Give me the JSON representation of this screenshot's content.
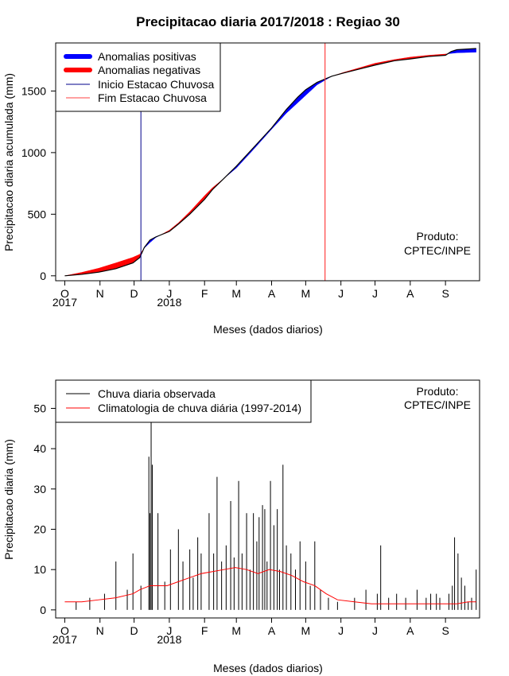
{
  "chart_data": [
    {
      "type": "area",
      "title": "Precipitacao diaria 2017/2018 : Regiao 30",
      "xlabel": "Meses (dados diarios)",
      "ylabel": "Precipitacao diaria acumulada (mm)",
      "xlim": [
        -8,
        365
      ],
      "ylim": [
        -40,
        1890
      ],
      "month_ticks": [
        {
          "label": "O",
          "day": 0
        },
        {
          "label": "N",
          "day": 31
        },
        {
          "label": "D",
          "day": 61
        },
        {
          "label": "J",
          "day": 92
        },
        {
          "label": "F",
          "day": 123
        },
        {
          "label": "M",
          "day": 151
        },
        {
          "label": "A",
          "day": 182
        },
        {
          "label": "M",
          "day": 212
        },
        {
          "label": "J",
          "day": 243
        },
        {
          "label": "J",
          "day": 273
        },
        {
          "label": "A",
          "day": 304
        },
        {
          "label": "S",
          "day": 335
        }
      ],
      "year_labels": [
        {
          "label": "2017",
          "day": 0
        },
        {
          "label": "2018",
          "day": 92
        }
      ],
      "y_ticks": [
        0,
        500,
        1000,
        1500
      ],
      "legend": {
        "position": "top-left",
        "items": [
          {
            "label": "Anomalias positivas",
            "color": "#0000ff",
            "kind": "thick"
          },
          {
            "label": "Anomalias negativas",
            "color": "#ff0000",
            "kind": "thick"
          },
          {
            "label": "Inicio Estacao Chuvosa",
            "color": "#00008b",
            "kind": "thin"
          },
          {
            "label": "Fim Estacao Chuvosa",
            "color": "#ff4040",
            "kind": "thin"
          }
        ]
      },
      "annotation": [
        "Produto:",
        "CPTEC/INPE"
      ],
      "rainy_season_start_day": 67,
      "rainy_season_end_day": 229,
      "observed_cumulative": {
        "days": [
          0,
          15,
          30,
          45,
          60,
          66,
          70,
          75,
          80,
          92,
          100,
          110,
          123,
          130,
          140,
          151,
          165,
          182,
          195,
          205,
          212,
          222,
          235,
          245,
          260,
          273,
          290,
          304,
          320,
          335,
          340,
          345,
          362
        ],
        "values": [
          0,
          12,
          30,
          58,
          105,
          148,
          230,
          290,
          315,
          360,
          420,
          500,
          620,
          700,
          790,
          890,
          1030,
          1200,
          1350,
          1450,
          1510,
          1570,
          1620,
          1645,
          1680,
          1710,
          1745,
          1760,
          1780,
          1790,
          1820,
          1835,
          1845
        ]
      },
      "climatology_cumulative": {
        "days": [
          0,
          15,
          30,
          45,
          60,
          66,
          70,
          75,
          80,
          92,
          100,
          110,
          123,
          130,
          140,
          151,
          165,
          182,
          195,
          205,
          212,
          222,
          235,
          245,
          260,
          273,
          290,
          304,
          320,
          335,
          340,
          345,
          362
        ],
        "values": [
          0,
          28,
          62,
          105,
          150,
          175,
          225,
          270,
          310,
          370,
          430,
          520,
          650,
          715,
          790,
          875,
          1015,
          1190,
          1320,
          1405,
          1465,
          1550,
          1620,
          1650,
          1690,
          1725,
          1755,
          1775,
          1790,
          1800,
          1805,
          1810,
          1815
        ]
      }
    },
    {
      "type": "bar",
      "xlabel": "Meses (dados diarios)",
      "ylabel": "Precipitacao diaria (mm)",
      "xlim": [
        -8,
        365
      ],
      "ylim": [
        -2,
        57
      ],
      "month_ticks": [
        {
          "label": "O",
          "day": 0
        },
        {
          "label": "N",
          "day": 31
        },
        {
          "label": "D",
          "day": 61
        },
        {
          "label": "J",
          "day": 92
        },
        {
          "label": "F",
          "day": 123
        },
        {
          "label": "M",
          "day": 151
        },
        {
          "label": "A",
          "day": 182
        },
        {
          "label": "M",
          "day": 212
        },
        {
          "label": "J",
          "day": 243
        },
        {
          "label": "J",
          "day": 273
        },
        {
          "label": "A",
          "day": 304
        },
        {
          "label": "S",
          "day": 335
        }
      ],
      "year_labels": [
        {
          "label": "2017",
          "day": 0
        },
        {
          "label": "2018",
          "day": 92
        }
      ],
      "y_ticks": [
        0,
        10,
        20,
        30,
        40,
        50
      ],
      "legend": {
        "position": "top-left",
        "items": [
          {
            "label": "Chuva diaria observada",
            "color": "#000000"
          },
          {
            "label": "Climatologia de chuva diária (1997-2014)",
            "color": "#ff0000"
          }
        ]
      },
      "annotation": [
        "Produto:",
        "CPTEC/INPE"
      ],
      "observed_daily_peaks": [
        {
          "day": 10,
          "value": 2
        },
        {
          "day": 22,
          "value": 3
        },
        {
          "day": 35,
          "value": 4
        },
        {
          "day": 45,
          "value": 12
        },
        {
          "day": 55,
          "value": 5
        },
        {
          "day": 60,
          "value": 14
        },
        {
          "day": 67,
          "value": 6
        },
        {
          "day": 74,
          "value": 38
        },
        {
          "day": 75,
          "value": 24
        },
        {
          "day": 76,
          "value": 47
        },
        {
          "day": 77,
          "value": 36
        },
        {
          "day": 82,
          "value": 24
        },
        {
          "day": 88,
          "value": 7
        },
        {
          "day": 93,
          "value": 15
        },
        {
          "day": 100,
          "value": 20
        },
        {
          "day": 104,
          "value": 12
        },
        {
          "day": 110,
          "value": 15
        },
        {
          "day": 113,
          "value": 8
        },
        {
          "day": 117,
          "value": 18
        },
        {
          "day": 120,
          "value": 14
        },
        {
          "day": 127,
          "value": 24
        },
        {
          "day": 131,
          "value": 14
        },
        {
          "day": 134,
          "value": 33
        },
        {
          "day": 138,
          "value": 12
        },
        {
          "day": 142,
          "value": 16
        },
        {
          "day": 146,
          "value": 27
        },
        {
          "day": 149,
          "value": 13
        },
        {
          "day": 153,
          "value": 32
        },
        {
          "day": 156,
          "value": 14
        },
        {
          "day": 160,
          "value": 24
        },
        {
          "day": 163,
          "value": 10
        },
        {
          "day": 166,
          "value": 24
        },
        {
          "day": 169,
          "value": 17
        },
        {
          "day": 171,
          "value": 23
        },
        {
          "day": 174,
          "value": 26
        },
        {
          "day": 176,
          "value": 25
        },
        {
          "day": 178,
          "value": 12
        },
        {
          "day": 181,
          "value": 32
        },
        {
          "day": 184,
          "value": 21
        },
        {
          "day": 187,
          "value": 25
        },
        {
          "day": 189,
          "value": 10
        },
        {
          "day": 192,
          "value": 36
        },
        {
          "day": 195,
          "value": 16
        },
        {
          "day": 199,
          "value": 14
        },
        {
          "day": 203,
          "value": 10
        },
        {
          "day": 207,
          "value": 17
        },
        {
          "day": 212,
          "value": 12
        },
        {
          "day": 216,
          "value": 6
        },
        {
          "day": 220,
          "value": 17
        },
        {
          "day": 225,
          "value": 5
        },
        {
          "day": 232,
          "value": 3
        },
        {
          "day": 240,
          "value": 2
        },
        {
          "day": 255,
          "value": 3
        },
        {
          "day": 265,
          "value": 5
        },
        {
          "day": 275,
          "value": 4
        },
        {
          "day": 278,
          "value": 16
        },
        {
          "day": 285,
          "value": 3
        },
        {
          "day": 292,
          "value": 4
        },
        {
          "day": 300,
          "value": 3
        },
        {
          "day": 310,
          "value": 5
        },
        {
          "day": 318,
          "value": 3
        },
        {
          "day": 322,
          "value": 4
        },
        {
          "day": 327,
          "value": 4
        },
        {
          "day": 330,
          "value": 3
        },
        {
          "day": 338,
          "value": 4
        },
        {
          "day": 341,
          "value": 6
        },
        {
          "day": 343,
          "value": 18
        },
        {
          "day": 346,
          "value": 14
        },
        {
          "day": 349,
          "value": 8
        },
        {
          "day": 352,
          "value": 6
        },
        {
          "day": 355,
          "value": 2
        },
        {
          "day": 358,
          "value": 3
        },
        {
          "day": 362,
          "value": 10
        }
      ],
      "climatology_daily": {
        "days": [
          0,
          15,
          30,
          45,
          60,
          66,
          75,
          90,
          100,
          110,
          120,
          130,
          140,
          150,
          160,
          170,
          180,
          190,
          200,
          210,
          220,
          230,
          240,
          255,
          270,
          285,
          300,
          315,
          330,
          345,
          355,
          362
        ],
        "values": [
          2,
          2,
          2.5,
          3,
          4,
          5,
          6,
          6,
          7,
          8,
          9,
          9.5,
          10,
          10.5,
          10,
          9,
          10,
          9.5,
          8.5,
          7,
          6,
          4,
          2.5,
          2,
          1.5,
          1.5,
          1.5,
          1.5,
          1.5,
          1.5,
          2,
          2
        ]
      }
    }
  ]
}
